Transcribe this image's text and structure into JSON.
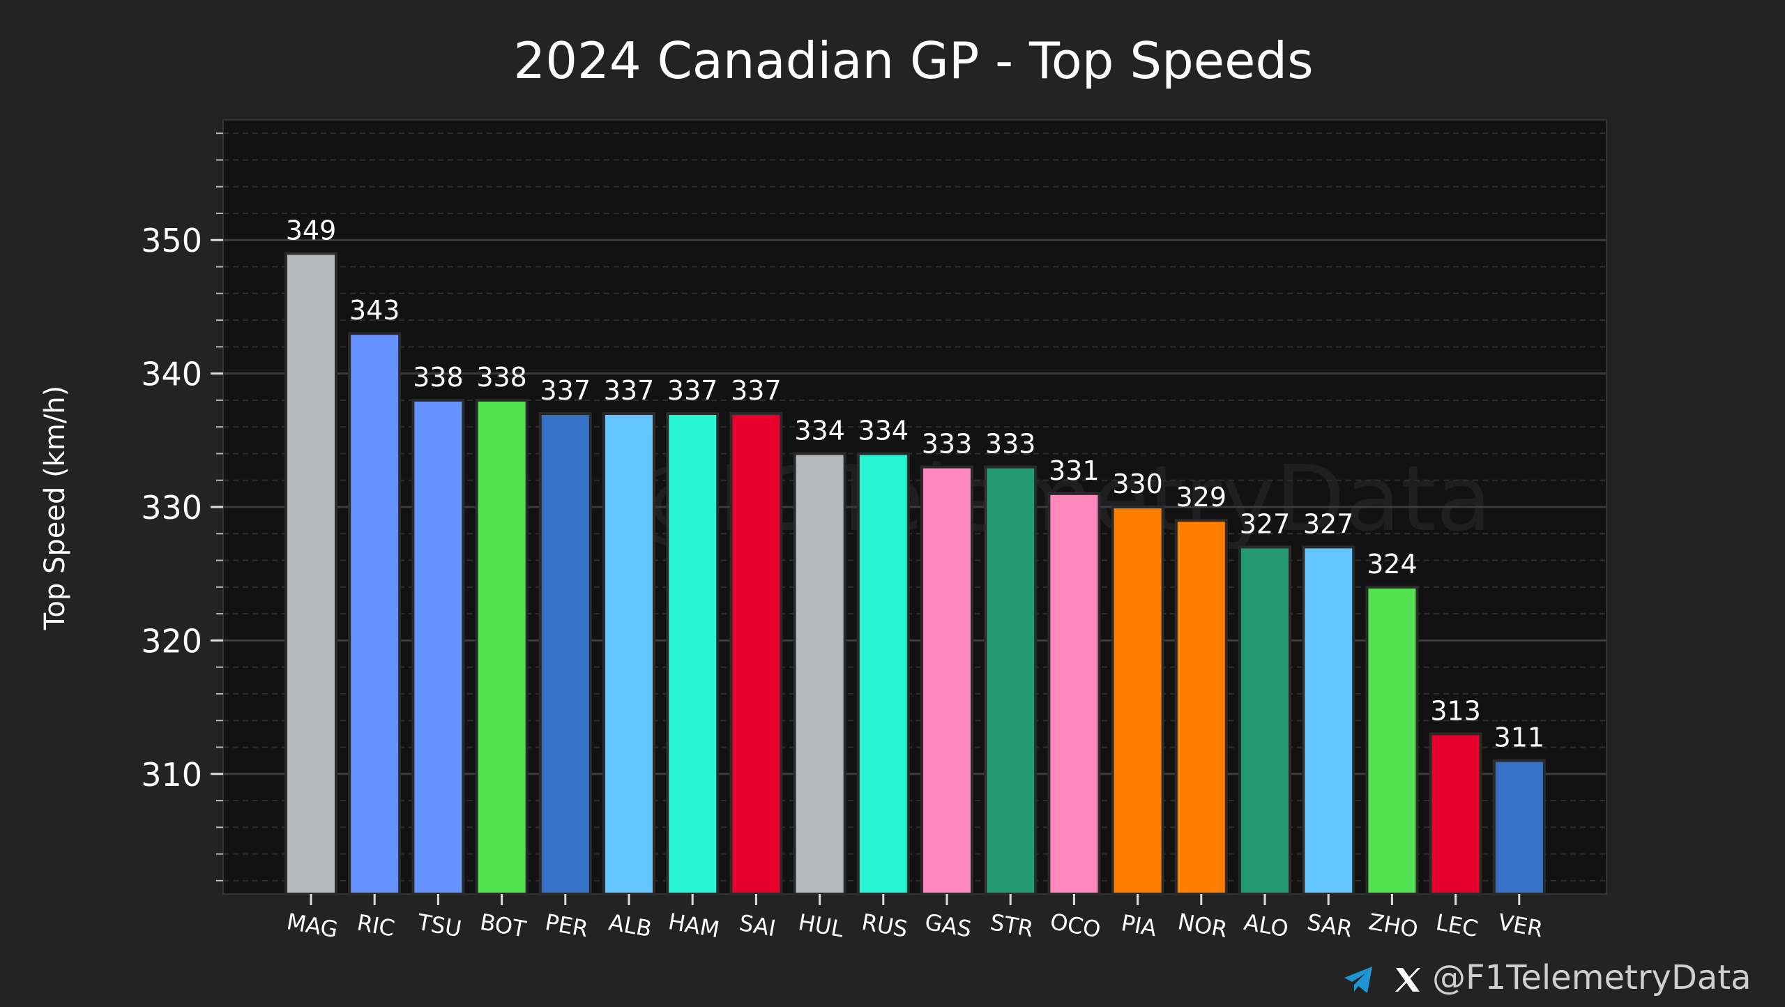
{
  "chart_data": {
    "type": "bar",
    "title": "2024 Canadian GP - Top Speeds",
    "xlabel": "",
    "ylabel": "Top Speed (km/h)",
    "ylim": [
      301,
      359
    ],
    "yticks": [
      310,
      320,
      330,
      340,
      350
    ],
    "minor_tick_step": 2,
    "grid": true,
    "categories": [
      "MAG",
      "RIC",
      "TSU",
      "BOT",
      "PER",
      "ALB",
      "HAM",
      "SAI",
      "HUL",
      "RUS",
      "GAS",
      "STR",
      "OCO",
      "PIA",
      "NOR",
      "ALO",
      "SAR",
      "ZHO",
      "LEC",
      "VER"
    ],
    "values": [
      349,
      343,
      338,
      338,
      337,
      337,
      337,
      337,
      334,
      334,
      333,
      333,
      331,
      330,
      329,
      327,
      327,
      324,
      313,
      311
    ],
    "colors": [
      "#B6BABD",
      "#6692FF",
      "#6692FF",
      "#52E252",
      "#3671C6",
      "#64C4FF",
      "#27F4D2",
      "#E8002D",
      "#B6BABD",
      "#27F4D2",
      "#FF87BC",
      "#229971",
      "#FF87BC",
      "#FF8000",
      "#FF8000",
      "#229971",
      "#64C4FF",
      "#52E252",
      "#E8002D",
      "#3671C6"
    ]
  },
  "watermark": "@F1TelemetryData",
  "footer": {
    "handle": "@F1TelemetryData",
    "icons": [
      "telegram-icon",
      "x-icon"
    ],
    "telegram_color": "#1E96D6"
  },
  "colors": {
    "background": "#232323",
    "plot_background": "#121212",
    "text": "#FFFFFF",
    "grid_major": "#3A3A3A",
    "grid_minor": "#2E2E2E"
  }
}
